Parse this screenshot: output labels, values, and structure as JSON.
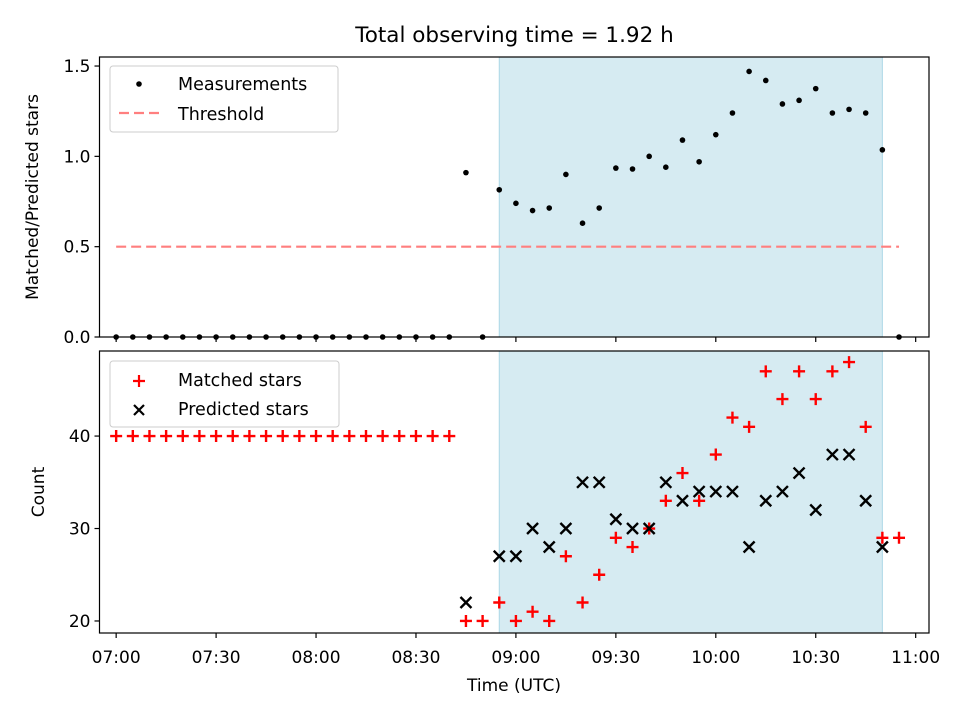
{
  "title": "Total observing time = 1.92 h",
  "xlabel": "Time (UTC)",
  "colors": {
    "highlight": "#add8e6",
    "measurement": "#000000",
    "threshold": "#ff7f7f",
    "matched": "#ff0000",
    "predicted": "#000000"
  },
  "chart_data": [
    {
      "type": "scatter",
      "ylabel": "Matched/Predicted stars",
      "ylim": [
        0,
        1.55
      ],
      "xlim": [
        "06:55",
        "11:04"
      ],
      "x_ticks": [
        "07:00",
        "07:30",
        "08:00",
        "08:30",
        "09:00",
        "09:30",
        "10:00",
        "10:30",
        "11:00"
      ],
      "y_ticks": [
        "0.0",
        "0.5",
        "1.0",
        "1.5"
      ],
      "shaded_span": [
        "08:55",
        "10:50"
      ],
      "legend": {
        "position": "top-left",
        "entries": [
          "Measurements",
          "Threshold"
        ]
      },
      "threshold": {
        "name": "Threshold",
        "y": 0.5,
        "x_range": [
          "07:00",
          "10:55"
        ],
        "style": "dashed"
      },
      "series": [
        {
          "name": "Measurements",
          "marker": "dot",
          "x": [
            "07:00",
            "07:05",
            "07:10",
            "07:15",
            "07:20",
            "07:25",
            "07:30",
            "07:35",
            "07:40",
            "07:45",
            "07:50",
            "07:55",
            "08:00",
            "08:05",
            "08:10",
            "08:15",
            "08:20",
            "08:25",
            "08:30",
            "08:35",
            "08:40",
            "08:45",
            "08:50",
            "08:55",
            "09:00",
            "09:05",
            "09:10",
            "09:15",
            "09:20",
            "09:25",
            "09:30",
            "09:35",
            "09:40",
            "09:45",
            "09:50",
            "09:55",
            "10:00",
            "10:05",
            "10:10",
            "10:15",
            "10:20",
            "10:25",
            "10:30",
            "10:35",
            "10:40",
            "10:45",
            "10:50",
            "10:55"
          ],
          "y": [
            0,
            0,
            0,
            0,
            0,
            0,
            0,
            0,
            0,
            0,
            0,
            0,
            0,
            0,
            0,
            0,
            0,
            0,
            0,
            0,
            0,
            0.91,
            0,
            0.815,
            0.74,
            0.7,
            0.714,
            0.9,
            0.63,
            0.714,
            0.935,
            0.93,
            1.0,
            0.94,
            1.09,
            0.97,
            1.12,
            1.24,
            1.47,
            1.42,
            1.29,
            1.31,
            1.375,
            1.24,
            1.26,
            1.24,
            1.036,
            0
          ]
        }
      ]
    },
    {
      "type": "scatter",
      "ylabel": "Count",
      "ylim": [
        18.7,
        49.2
      ],
      "xlim": [
        "06:55",
        "11:04"
      ],
      "x_ticks": [
        "07:00",
        "07:30",
        "08:00",
        "08:30",
        "09:00",
        "09:30",
        "10:00",
        "10:30",
        "11:00"
      ],
      "y_ticks": [
        "20",
        "30",
        "40"
      ],
      "shaded_span": [
        "08:55",
        "10:50"
      ],
      "legend": {
        "position": "top-left",
        "entries": [
          "Matched stars",
          "Predicted stars"
        ]
      },
      "series": [
        {
          "name": "Matched stars",
          "marker": "plus",
          "x": [
            "07:00",
            "07:05",
            "07:10",
            "07:15",
            "07:20",
            "07:25",
            "07:30",
            "07:35",
            "07:40",
            "07:45",
            "07:50",
            "07:55",
            "08:00",
            "08:05",
            "08:10",
            "08:15",
            "08:20",
            "08:25",
            "08:30",
            "08:35",
            "08:40",
            "08:45",
            "08:50",
            "08:55",
            "09:00",
            "09:05",
            "09:10",
            "09:15",
            "09:20",
            "09:25",
            "09:30",
            "09:35",
            "09:40",
            "09:45",
            "09:50",
            "09:55",
            "10:00",
            "10:05",
            "10:10",
            "10:15",
            "10:20",
            "10:25",
            "10:30",
            "10:35",
            "10:40",
            "10:45",
            "10:50",
            "10:55"
          ],
          "y": [
            40,
            40,
            40,
            40,
            40,
            40,
            40,
            40,
            40,
            40,
            40,
            40,
            40,
            40,
            40,
            40,
            40,
            40,
            40,
            40,
            40,
            20,
            20,
            22,
            20,
            21,
            20,
            27,
            22,
            25,
            29,
            28,
            30,
            33,
            36,
            33,
            38,
            42,
            41,
            47,
            44,
            47,
            44,
            47,
            48,
            41,
            29,
            29
          ]
        },
        {
          "name": "Predicted stars",
          "marker": "x",
          "x": [
            "08:45",
            "08:55",
            "09:00",
            "09:05",
            "09:10",
            "09:15",
            "09:20",
            "09:25",
            "09:30",
            "09:35",
            "09:40",
            "09:45",
            "09:50",
            "09:55",
            "10:00",
            "10:05",
            "10:10",
            "10:15",
            "10:20",
            "10:25",
            "10:30",
            "10:35",
            "10:40",
            "10:45",
            "10:50"
          ],
          "y": [
            22,
            27,
            27,
            30,
            28,
            30,
            35,
            35,
            31,
            30,
            30,
            35,
            33,
            34,
            34,
            34,
            28,
            33,
            34,
            36,
            32,
            38,
            38,
            33,
            28
          ]
        }
      ]
    }
  ]
}
